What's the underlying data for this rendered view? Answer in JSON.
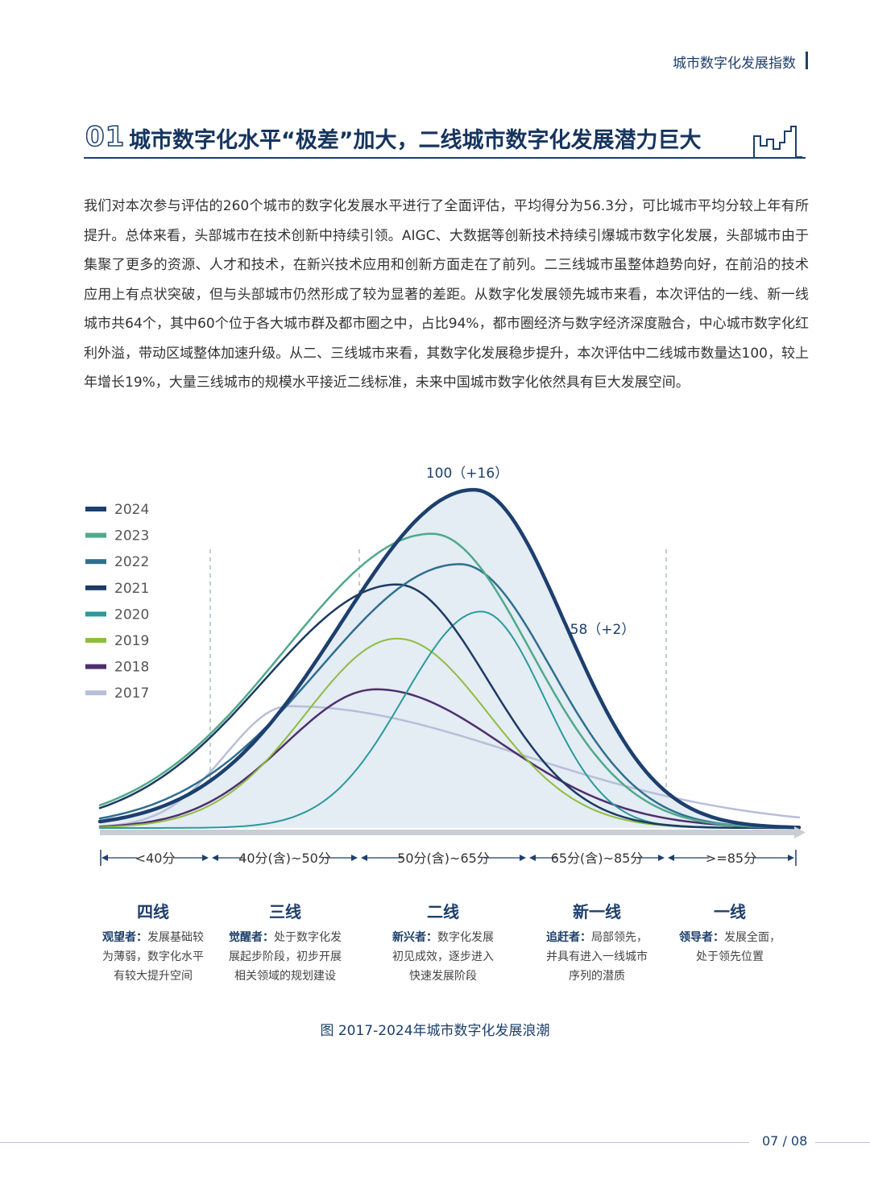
{
  "header": {
    "title": "城市数字化发展指数"
  },
  "section": {
    "number": "01",
    "title": "城市数字化水平“极差”加大，二线城市数字化发展潜力巨大"
  },
  "body": {
    "paragraph": "我们对本次参与评估的260个城市的数字化发展水平进行了全面评估，平均得分为56.3分，可比城市平均分较上年有所提升。总体来看，头部城市在技术创新中持续引领。AIGC、大数据等创新技术持续引爆城市数字化发展，头部城市由于集聚了更多的资源、人才和技术，在新兴技术应用和创新方面走在了前列。二三线城市虽整体趋势向好，在前沿的技术应用上有点状突破，但与头部城市仍然形成了较为显著的差距。从数字化发展领先城市来看，本次评估的一线、新一线城市共64个，其中60个位于各大城市群及都市圈之中，占比94%，都市圈经济与数字经济深度融合，中心城市数字化红利外溢，带动区域整体加速升级。从二、三线城市来看，其数字化发展稳步提升，本次评估中二线城市数量达100，较上年增长19%，大量三线城市的规模水平接近二线标准，未来中国城市数字化依然具有巨大发展空间。"
  },
  "chart_data": {
    "type": "line",
    "title": "图 2017-2024年城市数字化发展浪潮",
    "legend_position": "top-left",
    "x_ranges": [
      "<40分",
      "40分(含)~50分",
      "50分(含)~65分",
      "65分(含)~85分",
      ">=85分"
    ],
    "annotations": [
      {
        "text": "100（+16）",
        "series": "2024",
        "at": "peak"
      },
      {
        "text": "58（+2）",
        "series": "2024",
        "at": "65分(含)~85分"
      }
    ],
    "series": [
      {
        "name": "2024",
        "color": "#1c3f6e",
        "width": 4.5,
        "peak": 1.0,
        "center": 0.535,
        "sl": 0.19,
        "sr": 0.13,
        "fill": true
      },
      {
        "name": "2023",
        "color": "#4fa98a",
        "width": 2.5,
        "peak": 0.87,
        "center": 0.475,
        "sl": 0.21,
        "sr": 0.14
      },
      {
        "name": "2022",
        "color": "#2f6f8f",
        "width": 2.5,
        "peak": 0.78,
        "center": 0.515,
        "sl": 0.2,
        "sr": 0.13
      },
      {
        "name": "2021",
        "color": "#1c3a63",
        "width": 2.5,
        "peak": 0.72,
        "center": 0.425,
        "sl": 0.19,
        "sr": 0.13
      },
      {
        "name": "2020",
        "color": "#2a9a9a",
        "width": 2.0,
        "peak": 0.64,
        "center": 0.545,
        "sl": 0.11,
        "sr": 0.09
      },
      {
        "name": "2019",
        "color": "#8fbc3f",
        "width": 2.0,
        "peak": 0.56,
        "center": 0.425,
        "sl": 0.13,
        "sr": 0.13
      },
      {
        "name": "2018",
        "color": "#4e2f6e",
        "width": 2.5,
        "peak": 0.41,
        "center": 0.395,
        "sl": 0.13,
        "sr": 0.18
      },
      {
        "name": "2017",
        "color": "#b7bfd8",
        "width": 2.5,
        "peak": 0.36,
        "center": 0.27,
        "sl": 0.09,
        "sr": 0.33
      }
    ]
  },
  "tiers": [
    {
      "title": "四线",
      "lead": "观望者：",
      "desc": [
        "发展基础较",
        "为薄弱，数字化水平",
        "有较大提升空间"
      ]
    },
    {
      "title": "三线",
      "lead": "觉醒者：",
      "desc": [
        "处于数字化发",
        "展起步阶段，初步开展",
        "相关领域的规划建设"
      ]
    },
    {
      "title": "二线",
      "lead": "新兴者：",
      "desc": [
        "数字化发展",
        "初见成效，逐步进入",
        "快速发展阶段"
      ]
    },
    {
      "title": "新一线",
      "lead": "追赶者：",
      "desc": [
        "局部领先，",
        "并具有进入一线城市",
        "序列的潜质"
      ]
    },
    {
      "title": "一线",
      "lead": "领导者：",
      "desc": [
        "发展全面，",
        "处于领先位置"
      ]
    }
  ],
  "footer": {
    "page": "07 / 08"
  }
}
